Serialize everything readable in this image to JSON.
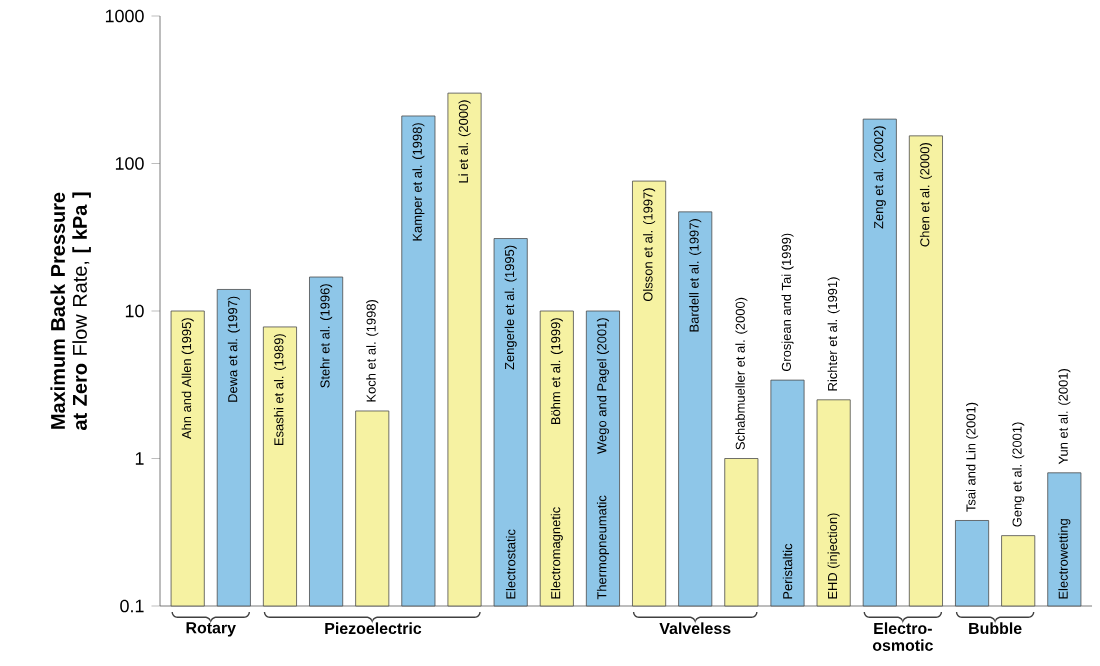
{
  "chart_data": {
    "type": "bar",
    "ylabel": "**Maximum Back Pressure at Zero** Flow Rate, **[ kPa ]**",
    "categories": [
      "Ahn and Allen (1995)",
      "Dewa et al. (1997)",
      "Esashi et al. (1989)",
      "Stehr et al. (1996)",
      "Koch et al. (1998)",
      "Kamper et al. (1998)",
      "Li et al. (2000)",
      "Zengerle et al. (1995)",
      "Böhm et al. (1999)",
      "Wego and Pagel (2001)",
      "Olsson et al. (1997)",
      "Bardell et al. (1997)",
      "Schabmueller et al. (2000)",
      "Grosjean and Tai (1999)",
      "Richter et al. (1991)",
      "Zeng et al. (2002)",
      "Chen et al. (2000)",
      "Tsai and Lin (2001)",
      "Geng et al. (2001)",
      "Yun et al. (2001)"
    ],
    "values": [
      10,
      14,
      7.8,
      17,
      2.1,
      210,
      300,
      31,
      10,
      10,
      76,
      47,
      1.0,
      3.4,
      2.5,
      200,
      154,
      0.38,
      0.3,
      0.8
    ],
    "colors": [
      "#f6f2a2",
      "#8ec6e8",
      "#f6f2a2",
      "#8ec6e8",
      "#f6f2a2",
      "#8ec6e8",
      "#f6f2a2",
      "#8ec6e8",
      "#f6f2a2",
      "#8ec6e8",
      "#f6f2a2",
      "#8ec6e8",
      "#f6f2a2",
      "#8ec6e8",
      "#f6f2a2",
      "#8ec6e8",
      "#f6f2a2",
      "#8ec6e8",
      "#f6f2a2",
      "#8ec6e8"
    ],
    "log": "y",
    "ylim": [
      0.1,
      1000
    ],
    "yticks": [
      0.1,
      1,
      10,
      100,
      1000
    ],
    "annotations": [
      "Rotary",
      "Piezoelectric",
      "Electrostatic",
      "Electromagnetic",
      "Thermopneumatic",
      "Valveless",
      "Peristaltic",
      "EHD (injection)",
      "Electro-osmotic",
      "Bubble",
      "Electrowetting"
    ]
  }
}
